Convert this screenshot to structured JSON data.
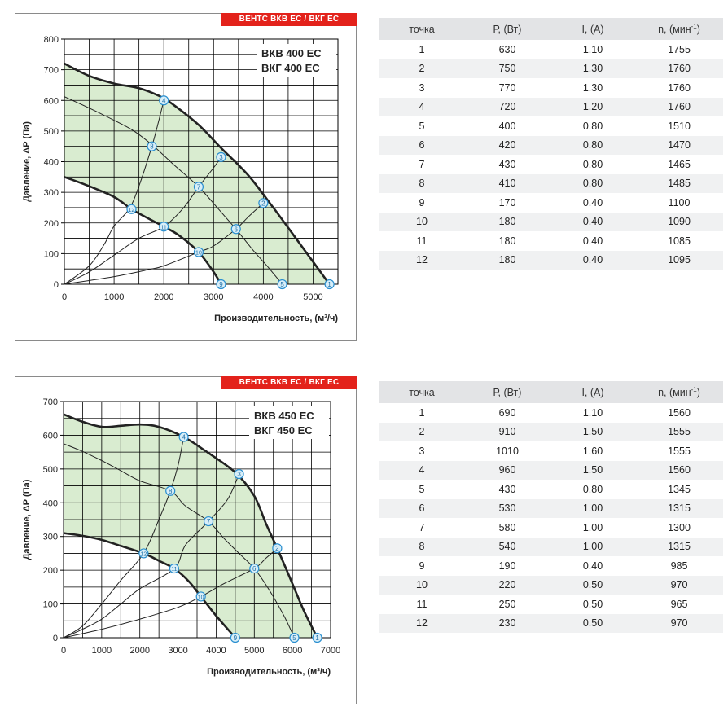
{
  "chart_data": [
    {
      "type": "line",
      "banner": "ВЕНТС ВКВ ЕС / ВКГ ЕС",
      "model_lines": [
        "ВКВ 400 ЕС",
        "ВКГ 400 ЕС"
      ],
      "xlabel": "Производительность, (м³/ч)",
      "ylabel": "Давление, ΔР (Па)",
      "xlim": [
        0,
        5500
      ],
      "ylim": [
        0,
        800
      ],
      "x_ticks": [
        0,
        1000,
        2000,
        3000,
        4000,
        5000
      ],
      "y_ticks": [
        0,
        100,
        200,
        300,
        400,
        500,
        600,
        700,
        800
      ],
      "grid": true,
      "max_curve": [
        [
          0,
          720
        ],
        [
          500,
          680
        ],
        [
          1000,
          655
        ],
        [
          1500,
          640
        ],
        [
          1900,
          615
        ],
        [
          2200,
          585
        ],
        [
          2700,
          520
        ],
        [
          3150,
          445
        ],
        [
          3700,
          355
        ],
        [
          4200,
          250
        ],
        [
          4700,
          140
        ],
        [
          5330,
          0
        ]
      ],
      "min_curve": [
        [
          0,
          350
        ],
        [
          500,
          320
        ],
        [
          1000,
          285
        ],
        [
          1350,
          245
        ],
        [
          1650,
          218
        ],
        [
          2000,
          188
        ],
        [
          2300,
          160
        ],
        [
          2700,
          105
        ],
        [
          3000,
          40
        ],
        [
          3150,
          0
        ]
      ],
      "mid_fan_curve": [
        [
          0,
          612
        ],
        [
          500,
          575
        ],
        [
          1000,
          535
        ],
        [
          1400,
          500
        ],
        [
          1800,
          450
        ],
        [
          2200,
          390
        ],
        [
          2700,
          318
        ],
        [
          3100,
          245
        ],
        [
          3450,
          180
        ],
        [
          3800,
          110
        ],
        [
          4100,
          55
        ],
        [
          4380,
          0
        ]
      ],
      "system_curves": [
        [
          [
            0,
            0
          ],
          [
            500,
            60
          ],
          [
            800,
            130
          ],
          [
            1000,
            190
          ],
          [
            1300,
            245
          ],
          [
            1500,
            320
          ],
          [
            1760,
            450
          ],
          [
            1900,
            535
          ],
          [
            2000,
            600
          ]
        ],
        [
          [
            0,
            0
          ],
          [
            500,
            40
          ],
          [
            1000,
            95
          ],
          [
            1500,
            150
          ],
          [
            2000,
            188
          ],
          [
            2400,
            250
          ],
          [
            2700,
            318
          ],
          [
            3000,
            380
          ],
          [
            3150,
            415
          ]
        ],
        [
          [
            0,
            0
          ],
          [
            1000,
            25
          ],
          [
            1700,
            48
          ],
          [
            2000,
            60
          ],
          [
            2700,
            105
          ],
          [
            3000,
            125
          ],
          [
            3450,
            180
          ],
          [
            3700,
            220
          ],
          [
            4000,
            265
          ]
        ]
      ],
      "points": [
        {
          "label": "1",
          "x": 5330,
          "y": 0
        },
        {
          "label": "2",
          "x": 4000,
          "y": 265
        },
        {
          "label": "3",
          "x": 3150,
          "y": 415
        },
        {
          "label": "4",
          "x": 2000,
          "y": 600
        },
        {
          "label": "5",
          "x": 4380,
          "y": 0
        },
        {
          "label": "6",
          "x": 3450,
          "y": 180
        },
        {
          "label": "7",
          "x": 2700,
          "y": 318
        },
        {
          "label": "8",
          "x": 1760,
          "y": 450
        },
        {
          "label": "9",
          "x": 3150,
          "y": 0
        },
        {
          "label": "10",
          "x": 2700,
          "y": 105
        },
        {
          "label": "11",
          "x": 2000,
          "y": 188
        },
        {
          "label": "12",
          "x": 1350,
          "y": 245
        }
      ]
    },
    {
      "type": "line",
      "banner": "ВЕНТС ВКВ ЕС / ВКГ ЕС",
      "model_lines": [
        "ВКВ 450 ЕС",
        "ВКГ 450 ЕС"
      ],
      "xlabel": "Производительность, (м³/ч)",
      "ylabel": "Давление, ΔР (Па)",
      "xlim": [
        0,
        7000
      ],
      "ylim": [
        0,
        700
      ],
      "x_ticks": [
        0,
        1000,
        2000,
        3000,
        4000,
        5000,
        6000,
        7000
      ],
      "y_ticks": [
        0,
        100,
        200,
        300,
        400,
        500,
        600,
        700
      ],
      "grid": true,
      "max_curve": [
        [
          0,
          662
        ],
        [
          500,
          640
        ],
        [
          1000,
          625
        ],
        [
          1500,
          628
        ],
        [
          2000,
          632
        ],
        [
          2500,
          625
        ],
        [
          3150,
          595
        ],
        [
          3700,
          555
        ],
        [
          4500,
          490
        ],
        [
          5000,
          420
        ],
        [
          5300,
          340
        ],
        [
          5600,
          265
        ],
        [
          6000,
          160
        ],
        [
          6300,
          80
        ],
        [
          6650,
          0
        ]
      ],
      "min_curve": [
        [
          0,
          310
        ],
        [
          500,
          302
        ],
        [
          1000,
          290
        ],
        [
          1500,
          272
        ],
        [
          2100,
          250
        ],
        [
          2500,
          228
        ],
        [
          2900,
          205
        ],
        [
          3300,
          165
        ],
        [
          3600,
          122
        ],
        [
          4000,
          65
        ],
        [
          4500,
          0
        ]
      ],
      "mid_fan_curve": [
        [
          0,
          575
        ],
        [
          500,
          552
        ],
        [
          1000,
          525
        ],
        [
          1500,
          495
        ],
        [
          2000,
          465
        ],
        [
          2800,
          435
        ],
        [
          3200,
          390
        ],
        [
          3800,
          345
        ],
        [
          4200,
          295
        ],
        [
          4600,
          250
        ],
        [
          5000,
          205
        ],
        [
          5400,
          140
        ],
        [
          5800,
          60
        ],
        [
          6050,
          0
        ]
      ],
      "system_curves": [
        [
          [
            0,
            0
          ],
          [
            500,
            35
          ],
          [
            1000,
            100
          ],
          [
            1500,
            170
          ],
          [
            2100,
            250
          ],
          [
            2500,
            350
          ],
          [
            2800,
            435
          ],
          [
            3000,
            510
          ],
          [
            3150,
            595
          ]
        ],
        [
          [
            0,
            0
          ],
          [
            500,
            25
          ],
          [
            1000,
            55
          ],
          [
            1500,
            100
          ],
          [
            2000,
            145
          ],
          [
            2900,
            205
          ],
          [
            3200,
            275
          ],
          [
            3800,
            345
          ],
          [
            4300,
            410
          ],
          [
            4600,
            485
          ]
        ],
        [
          [
            0,
            0
          ],
          [
            1000,
            25
          ],
          [
            2000,
            55
          ],
          [
            3000,
            90
          ],
          [
            3600,
            122
          ],
          [
            4200,
            160
          ],
          [
            5000,
            205
          ],
          [
            5300,
            235
          ],
          [
            5600,
            265
          ]
        ]
      ],
      "points": [
        {
          "label": "1",
          "x": 6650,
          "y": 0
        },
        {
          "label": "2",
          "x": 5600,
          "y": 265
        },
        {
          "label": "3",
          "x": 4600,
          "y": 485
        },
        {
          "label": "4",
          "x": 3150,
          "y": 595
        },
        {
          "label": "5",
          "x": 6050,
          "y": 0
        },
        {
          "label": "6",
          "x": 5000,
          "y": 205
        },
        {
          "label": "7",
          "x": 3800,
          "y": 345
        },
        {
          "label": "8",
          "x": 2800,
          "y": 435
        },
        {
          "label": "9",
          "x": 4500,
          "y": 0
        },
        {
          "label": "10",
          "x": 3600,
          "y": 122
        },
        {
          "label": "11",
          "x": 2900,
          "y": 205
        },
        {
          "label": "12",
          "x": 2100,
          "y": 250
        }
      ]
    }
  ],
  "tables": [
    {
      "headers": {
        "point": "точка",
        "power": "Р, (Вт)",
        "current": "I, (А)",
        "speed": "n, (мин",
        "speed_sup": "-1",
        "speed_close": ")"
      },
      "rows": [
        {
          "point": "1",
          "power": "630",
          "current": "1.10",
          "speed": "1755"
        },
        {
          "point": "2",
          "power": "750",
          "current": "1.30",
          "speed": "1760"
        },
        {
          "point": "3",
          "power": "770",
          "current": "1.30",
          "speed": "1760"
        },
        {
          "point": "4",
          "power": "720",
          "current": "1.20",
          "speed": "1760"
        },
        {
          "point": "5",
          "power": "400",
          "current": "0.80",
          "speed": "1510"
        },
        {
          "point": "6",
          "power": "420",
          "current": "0.80",
          "speed": "1470"
        },
        {
          "point": "7",
          "power": "430",
          "current": "0.80",
          "speed": "1465"
        },
        {
          "point": "8",
          "power": "410",
          "current": "0.80",
          "speed": "1485"
        },
        {
          "point": "9",
          "power": "170",
          "current": "0.40",
          "speed": "1100"
        },
        {
          "point": "10",
          "power": "180",
          "current": "0.40",
          "speed": "1090"
        },
        {
          "point": "11",
          "power": "180",
          "current": "0.40",
          "speed": "1085"
        },
        {
          "point": "12",
          "power": "180",
          "current": "0.40",
          "speed": "1095"
        }
      ]
    },
    {
      "headers": {
        "point": "точка",
        "power": "Р, (Вт)",
        "current": "I, (А)",
        "speed": "n, (мин",
        "speed_sup": "-1",
        "speed_close": ")"
      },
      "rows": [
        {
          "point": "1",
          "power": "690",
          "current": "1.10",
          "speed": "1560"
        },
        {
          "point": "2",
          "power": "910",
          "current": "1.50",
          "speed": "1555"
        },
        {
          "point": "3",
          "power": "1010",
          "current": "1.60",
          "speed": "1555"
        },
        {
          "point": "4",
          "power": "960",
          "current": "1.50",
          "speed": "1560"
        },
        {
          "point": "5",
          "power": "430",
          "current": "0.80",
          "speed": "1345"
        },
        {
          "point": "6",
          "power": "530",
          "current": "1.00",
          "speed": "1315"
        },
        {
          "point": "7",
          "power": "580",
          "current": "1.00",
          "speed": "1300"
        },
        {
          "point": "8",
          "power": "540",
          "current": "1.00",
          "speed": "1315"
        },
        {
          "point": "9",
          "power": "190",
          "current": "0.40",
          "speed": "985"
        },
        {
          "point": "10",
          "power": "220",
          "current": "0.50",
          "speed": "970"
        },
        {
          "point": "11",
          "power": "250",
          "current": "0.50",
          "speed": "965"
        },
        {
          "point": "12",
          "power": "230",
          "current": "0.50",
          "speed": "970"
        }
      ]
    }
  ],
  "colors": {
    "fill": "#d9ecd0",
    "banner": "#e3221b",
    "point_fill": "#d8eef8",
    "point_stroke": "#2a8fd0",
    "curve": "#222222",
    "grid": "#000000"
  }
}
